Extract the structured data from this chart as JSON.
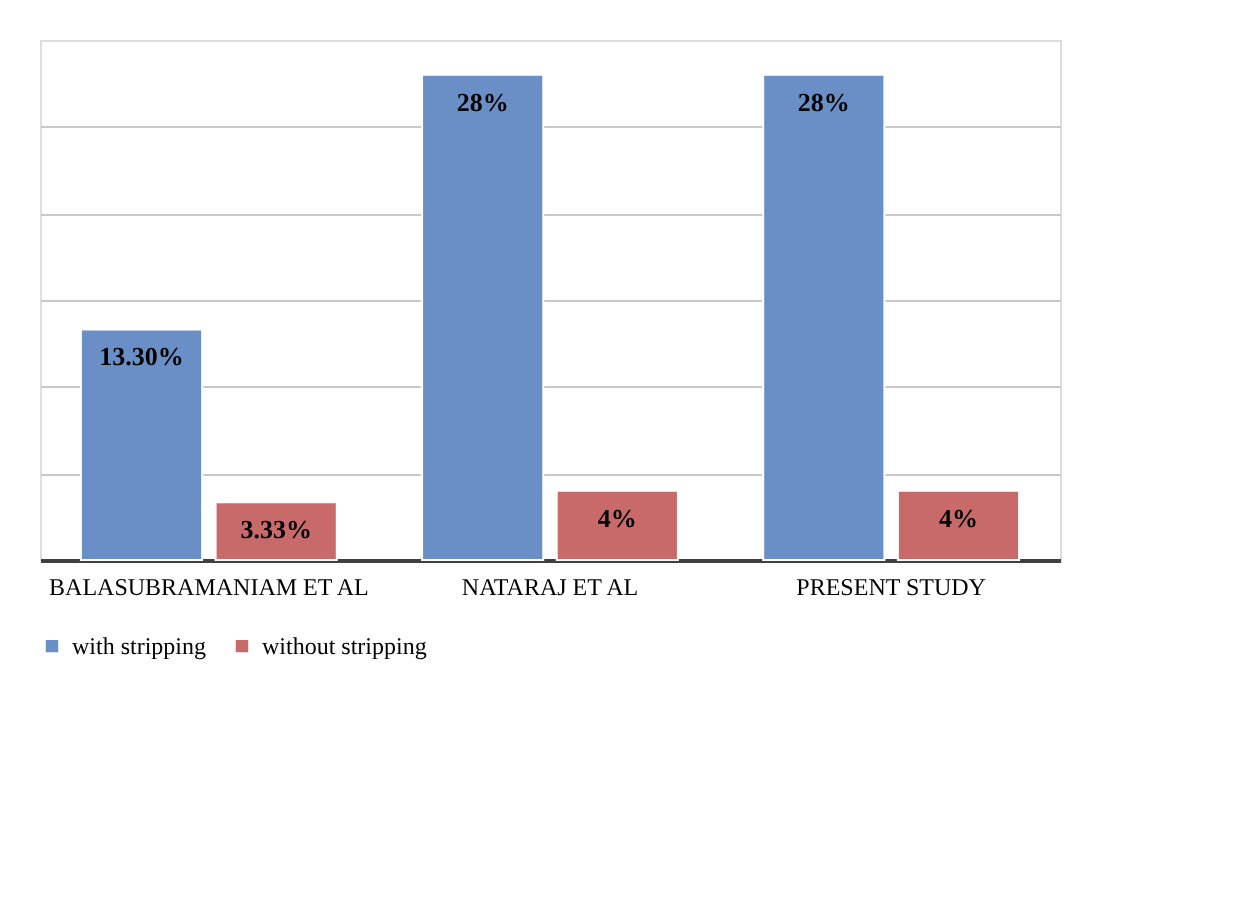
{
  "chart_data": {
    "type": "bar",
    "categories": [
      "BALASUBRAMANIAM ET AL",
      "NATARAJ ET AL",
      "PRESENT STUDY"
    ],
    "series": [
      {
        "name": "with stripping",
        "color": "#6a8fc7",
        "values": [
          13.3,
          28,
          28
        ],
        "value_labels": [
          "13.30%",
          "28%",
          "28%"
        ]
      },
      {
        "name": "without stripping",
        "color": "#c96a6a",
        "values": [
          3.33,
          4,
          4
        ],
        "value_labels": [
          "3.33%",
          "4%",
          "4%"
        ]
      }
    ],
    "ylim": [
      0,
      30
    ],
    "yticks": [
      {
        "value": 0,
        "label": null
      },
      {
        "value": 5,
        "label": null
      },
      {
        "value": 10,
        "label": null
      },
      {
        "value": 15,
        "label": null
      },
      {
        "value": 20,
        "label": null
      },
      {
        "value": 25,
        "label": null
      }
    ],
    "tick_labels": "x",
    "grid": "y",
    "legend": "bottom"
  }
}
